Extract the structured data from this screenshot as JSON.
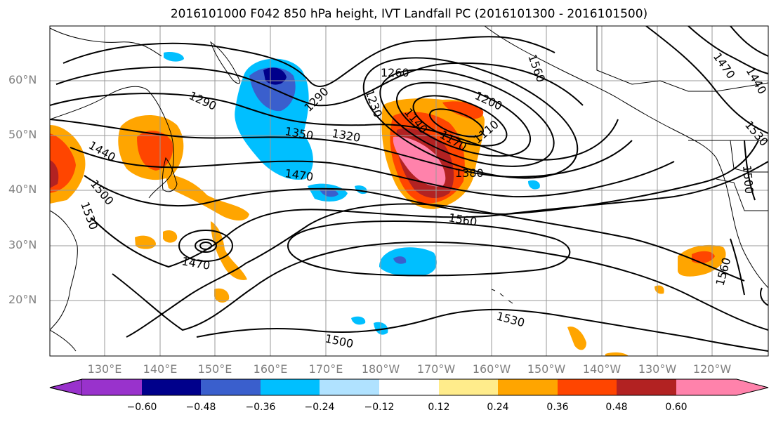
{
  "title": "2016101000 F042 850 hPa height, IVT Landfall PC (2016101300 - 2016101500)",
  "lat_labels": [
    "60°N",
    "50°N",
    "40°N",
    "30°N",
    "20°N"
  ],
  "lon_labels": [
    "130°E",
    "140°E",
    "150°E",
    "160°E",
    "170°E",
    "180°W",
    "170°W",
    "160°W",
    "150°W",
    "140°W",
    "130°W",
    "120°W"
  ],
  "contour_labels": [
    "1260",
    "1290",
    "1290",
    "1200",
    "1230",
    "1140",
    "1170",
    "1110",
    "1320",
    "1350",
    "1440",
    "1470",
    "1380",
    "1500",
    "1530",
    "1560",
    "1470",
    "1560",
    "1530",
    "1500",
    "1440",
    "1470",
    "1530",
    "1500",
    "1560"
  ],
  "colorbar": {
    "ticks": [
      "−0.60",
      "−0.48",
      "−0.36",
      "−0.24",
      "−0.12",
      "0.12",
      "0.24",
      "0.36",
      "0.48",
      "0.60"
    ],
    "colors": [
      "#9932cc",
      "#00008b",
      "#3a5fcd",
      "#00bfff",
      "#b0e2ff",
      "#ffffff",
      "#ffec8b",
      "#ffa500",
      "#ff4500",
      "#b22222",
      "#ff82ab"
    ]
  }
}
